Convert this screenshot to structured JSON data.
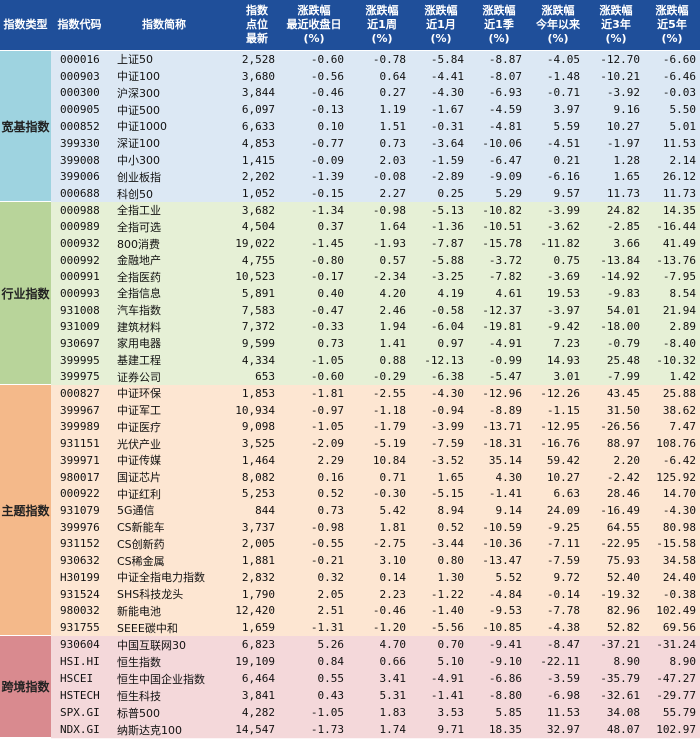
{
  "header": {
    "col1": [
      "指数类型"
    ],
    "col2": [
      "指数代码"
    ],
    "col3": [
      "指数简称"
    ],
    "col4": [
      "指数",
      "点位",
      "最新"
    ],
    "col5": [
      "涨跌幅",
      "最近收盘日",
      "(%)"
    ],
    "col6": [
      "涨跌幅",
      "近1周",
      "(%)"
    ],
    "col7": [
      "涨跌幅",
      "近1月",
      "(%)"
    ],
    "col8": [
      "涨跌幅",
      "近1季",
      "(%)"
    ],
    "col9": [
      "涨跌幅",
      "今年以来",
      "(%)"
    ],
    "col10": [
      "涨跌幅",
      "近3年",
      "(%)"
    ],
    "col11": [
      "涨跌幅",
      "近5年",
      "(%)"
    ]
  },
  "colors": {
    "header_bg": "#1f4f9a",
    "header_text": "#ffffff",
    "broad_cat": "#9ed3e0",
    "broad_row": "#dce8f4",
    "industry_cat": "#b8d49a",
    "industry_row": "#e6f0d6",
    "theme_cat": "#f4b98a",
    "theme_row": "#fde6d2",
    "cross_cat": "#d98a8f",
    "cross_row": "#f4d8da"
  },
  "groups": [
    {
      "name": "宽基指数",
      "rows": [
        {
          "code": "000016",
          "name": "上证50",
          "point": "2,528",
          "d": "-0.60",
          "w": "-0.78",
          "m": "-5.84",
          "q": "-8.87",
          "ytd": "-4.05",
          "y3": "-12.70",
          "y5": "-6.60"
        },
        {
          "code": "000903",
          "name": "中证100",
          "point": "3,680",
          "d": "-0.56",
          "w": "0.64",
          "m": "-4.41",
          "q": "-8.07",
          "ytd": "-1.48",
          "y3": "-10.21",
          "y5": "-6.46"
        },
        {
          "code": "000300",
          "name": "沪深300",
          "point": "3,844",
          "d": "-0.46",
          "w": "0.27",
          "m": "-4.30",
          "q": "-6.93",
          "ytd": "-0.71",
          "y3": "-3.92",
          "y5": "-0.03"
        },
        {
          "code": "000905",
          "name": "中证500",
          "point": "6,097",
          "d": "-0.13",
          "w": "1.19",
          "m": "-1.67",
          "q": "-4.59",
          "ytd": "3.97",
          "y3": "9.16",
          "y5": "5.50"
        },
        {
          "code": "000852",
          "name": "中证1000",
          "point": "6,633",
          "d": "0.10",
          "w": "1.51",
          "m": "-0.31",
          "q": "-4.81",
          "ytd": "5.59",
          "y3": "10.27",
          "y5": "5.01"
        },
        {
          "code": "399330",
          "name": "深证100",
          "point": "4,853",
          "d": "-0.77",
          "w": "0.73",
          "m": "-3.64",
          "q": "-10.06",
          "ytd": "-4.51",
          "y3": "-1.97",
          "y5": "11.53"
        },
        {
          "code": "399008",
          "name": "中小300",
          "point": "1,415",
          "d": "-0.09",
          "w": "2.03",
          "m": "-1.59",
          "q": "-6.47",
          "ytd": "0.21",
          "y3": "1.28",
          "y5": "2.14"
        },
        {
          "code": "399006",
          "name": "创业板指",
          "point": "2,202",
          "d": "-1.39",
          "w": "-0.08",
          "m": "-2.89",
          "q": "-9.09",
          "ytd": "-6.16",
          "y3": "1.65",
          "y5": "26.12"
        },
        {
          "code": "000688",
          "name": "科创50",
          "point": "1,052",
          "d": "-0.15",
          "w": "2.27",
          "m": "0.25",
          "q": "5.29",
          "ytd": "9.57",
          "y3": "11.73",
          "y5": "11.73"
        }
      ]
    },
    {
      "name": "行业指数",
      "rows": [
        {
          "code": "000988",
          "name": "全指工业",
          "point": "3,682",
          "d": "-1.34",
          "w": "-0.98",
          "m": "-5.13",
          "q": "-10.82",
          "ytd": "-3.99",
          "y3": "24.82",
          "y5": "14.35"
        },
        {
          "code": "000989",
          "name": "全指可选",
          "point": "4,504",
          "d": "0.37",
          "w": "1.64",
          "m": "-1.36",
          "q": "-10.51",
          "ytd": "-3.62",
          "y3": "-2.85",
          "y5": "-16.44"
        },
        {
          "code": "000932",
          "name": "800消费",
          "point": "19,022",
          "d": "-1.45",
          "w": "-1.93",
          "m": "-7.87",
          "q": "-15.78",
          "ytd": "-11.82",
          "y3": "3.66",
          "y5": "41.49"
        },
        {
          "code": "000992",
          "name": "金融地产",
          "point": "4,755",
          "d": "-0.80",
          "w": "0.57",
          "m": "-5.88",
          "q": "-3.72",
          "ytd": "0.75",
          "y3": "-13.84",
          "y5": "-13.76"
        },
        {
          "code": "000991",
          "name": "全指医药",
          "point": "10,523",
          "d": "-0.17",
          "w": "-2.34",
          "m": "-3.25",
          "q": "-7.82",
          "ytd": "-3.69",
          "y3": "-14.92",
          "y5": "-7.95"
        },
        {
          "code": "000993",
          "name": "全指信息",
          "point": "5,891",
          "d": "0.40",
          "w": "4.20",
          "m": "4.19",
          "q": "4.61",
          "ytd": "19.53",
          "y3": "-9.83",
          "y5": "8.54"
        },
        {
          "code": "931008",
          "name": "汽车指数",
          "point": "7,583",
          "d": "-0.47",
          "w": "2.46",
          "m": "-0.58",
          "q": "-12.37",
          "ytd": "-3.97",
          "y3": "54.01",
          "y5": "21.94"
        },
        {
          "code": "931009",
          "name": "建筑材料",
          "point": "7,372",
          "d": "-0.33",
          "w": "1.94",
          "m": "-6.04",
          "q": "-19.81",
          "ytd": "-9.42",
          "y3": "-18.00",
          "y5": "2.89"
        },
        {
          "code": "930697",
          "name": "家用电器",
          "point": "9,599",
          "d": "0.73",
          "w": "1.41",
          "m": "0.97",
          "q": "-4.91",
          "ytd": "7.23",
          "y3": "-0.79",
          "y5": "-8.40"
        },
        {
          "code": "399995",
          "name": "基建工程",
          "point": "4,334",
          "d": "-1.05",
          "w": "0.88",
          "m": "-12.13",
          "q": "-0.99",
          "ytd": "14.93",
          "y3": "25.48",
          "y5": "-10.32"
        },
        {
          "code": "399975",
          "name": "证券公司",
          "point": "653",
          "d": "-0.60",
          "w": "-0.29",
          "m": "-6.38",
          "q": "-5.47",
          "ytd": "3.01",
          "y3": "-7.99",
          "y5": "1.42"
        }
      ]
    },
    {
      "name": "主题指数",
      "rows": [
        {
          "code": "000827",
          "name": "中证环保",
          "point": "1,853",
          "d": "-1.81",
          "w": "-2.55",
          "m": "-4.30",
          "q": "-12.96",
          "ytd": "-12.26",
          "y3": "43.45",
          "y5": "25.88"
        },
        {
          "code": "399967",
          "name": "中证军工",
          "point": "10,934",
          "d": "-0.97",
          "w": "-1.18",
          "m": "-0.94",
          "q": "-8.89",
          "ytd": "-1.15",
          "y3": "31.50",
          "y5": "38.62"
        },
        {
          "code": "399989",
          "name": "中证医疗",
          "point": "9,098",
          "d": "-1.05",
          "w": "-1.79",
          "m": "-3.99",
          "q": "-13.71",
          "ytd": "-12.95",
          "y3": "-26.56",
          "y5": "7.47"
        },
        {
          "code": "931151",
          "name": "光伏产业",
          "point": "3,525",
          "d": "-2.09",
          "w": "-5.19",
          "m": "-7.59",
          "q": "-18.31",
          "ytd": "-16.76",
          "y3": "88.97",
          "y5": "108.76"
        },
        {
          "code": "399971",
          "name": "中证传媒",
          "point": "1,464",
          "d": "2.29",
          "w": "10.84",
          "m": "-3.52",
          "q": "35.14",
          "ytd": "59.42",
          "y3": "2.20",
          "y5": "-6.42"
        },
        {
          "code": "980017",
          "name": "国证芯片",
          "point": "8,082",
          "d": "0.16",
          "w": "0.71",
          "m": "1.65",
          "q": "4.30",
          "ytd": "10.27",
          "y3": "-2.42",
          "y5": "125.92"
        },
        {
          "code": "000922",
          "name": "中证红利",
          "point": "5,253",
          "d": "0.52",
          "w": "-0.30",
          "m": "-5.15",
          "q": "-1.41",
          "ytd": "6.63",
          "y3": "28.46",
          "y5": "14.70"
        },
        {
          "code": "931079",
          "name": "5G通信",
          "point": "844",
          "d": "0.73",
          "w": "5.42",
          "m": "8.94",
          "q": "9.14",
          "ytd": "24.09",
          "y3": "-16.49",
          "y5": "-4.30"
        },
        {
          "code": "399976",
          "name": "CS新能车",
          "point": "3,737",
          "d": "-0.98",
          "w": "1.81",
          "m": "0.52",
          "q": "-10.59",
          "ytd": "-9.25",
          "y3": "64.55",
          "y5": "80.98"
        },
        {
          "code": "931152",
          "name": "CS创新药",
          "point": "2,005",
          "d": "-0.55",
          "w": "-2.75",
          "m": "-3.44",
          "q": "-10.36",
          "ytd": "-7.11",
          "y3": "-22.95",
          "y5": "-15.58"
        },
        {
          "code": "930632",
          "name": "CS稀金属",
          "point": "1,881",
          "d": "-0.21",
          "w": "3.10",
          "m": "0.80",
          "q": "-13.47",
          "ytd": "-7.59",
          "y3": "75.93",
          "y5": "34.58"
        },
        {
          "code": "H30199",
          "name": "中证全指电力指数",
          "point": "2,832",
          "d": "0.32",
          "w": "0.14",
          "m": "1.30",
          "q": "5.52",
          "ytd": "9.72",
          "y3": "52.40",
          "y5": "24.40"
        },
        {
          "code": "931524",
          "name": "SHS科技龙头",
          "point": "1,790",
          "d": "2.05",
          "w": "2.23",
          "m": "-1.22",
          "q": "-4.84",
          "ytd": "-0.14",
          "y3": "-19.32",
          "y5": "-0.38"
        },
        {
          "code": "980032",
          "name": "新能电池",
          "point": "12,420",
          "d": "2.51",
          "w": "-0.46",
          "m": "-1.40",
          "q": "-9.53",
          "ytd": "-7.78",
          "y3": "82.96",
          "y5": "102.49"
        },
        {
          "code": "931755",
          "name": "SEEE碳中和",
          "point": "1,659",
          "d": "-1.31",
          "w": "-1.20",
          "m": "-5.56",
          "q": "-10.85",
          "ytd": "-4.38",
          "y3": "52.82",
          "y5": "69.56"
        }
      ]
    },
    {
      "name": "跨境指数",
      "rows": [
        {
          "code": "930604",
          "name": "中国互联网30",
          "point": "6,823",
          "d": "5.26",
          "w": "4.70",
          "m": "0.70",
          "q": "-9.41",
          "ytd": "-8.47",
          "y3": "-37.21",
          "y5": "-31.24"
        },
        {
          "code": "HSI.HI",
          "name": "恒生指数",
          "point": "19,109",
          "d": "0.84",
          "w": "0.66",
          "m": "5.10",
          "q": "-9.10",
          "ytd": "-22.11",
          "y3": "8.90",
          "y5": "8.90"
        },
        {
          "code": "HSCEI",
          "name": "恒生中国企业指数",
          "point": "6,464",
          "d": "0.55",
          "w": "3.41",
          "m": "-4.91",
          "q": "-6.86",
          "ytd": "-3.59",
          "y3": "-35.79",
          "y5": "-47.27"
        },
        {
          "code": "HSTECH",
          "name": "恒生科技",
          "point": "3,841",
          "d": "0.43",
          "w": "5.31",
          "m": "-1.41",
          "q": "-8.80",
          "ytd": "-6.98",
          "y3": "-32.61",
          "y5": "-29.77"
        },
        {
          "code": "SPX.GI",
          "name": "标普500",
          "point": "4,282",
          "d": "-1.05",
          "w": "1.83",
          "m": "3.53",
          "q": "5.85",
          "ytd": "11.53",
          "y3": "34.08",
          "y5": "55.79"
        },
        {
          "code": "NDX.GI",
          "name": "纳斯达克100",
          "point": "14,547",
          "d": "-1.73",
          "w": "1.74",
          "m": "9.71",
          "q": "18.35",
          "ytd": "32.97",
          "y3": "48.07",
          "y5": "102.97"
        }
      ]
    }
  ]
}
